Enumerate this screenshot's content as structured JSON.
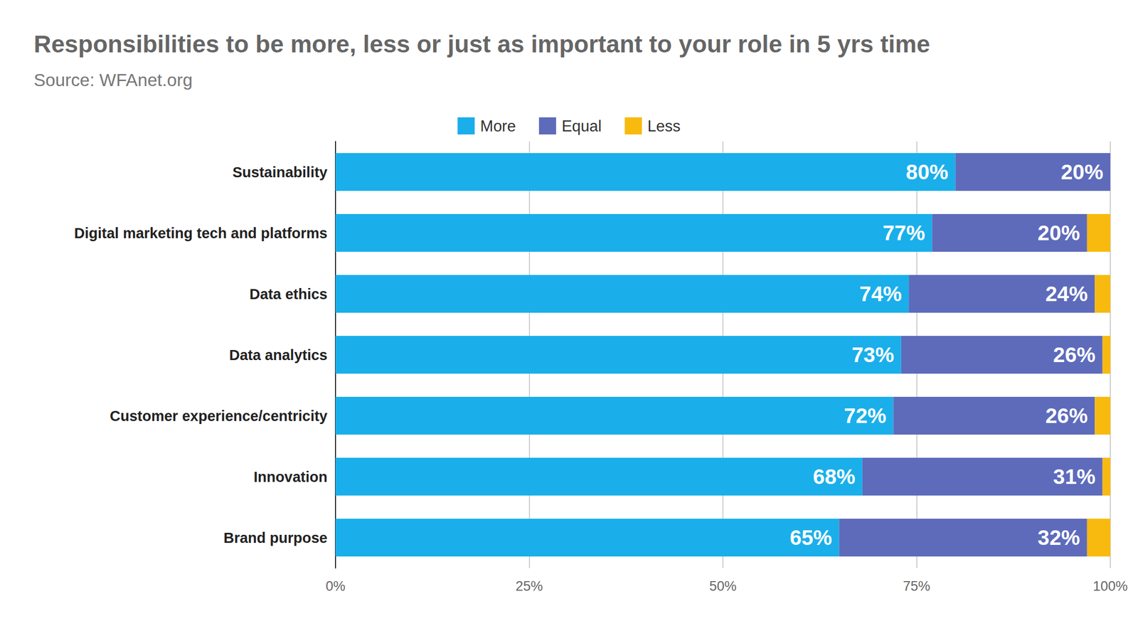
{
  "chart_data": {
    "type": "bar",
    "title": "Responsibilities to be more, less or just as important to your role in 5 yrs time",
    "subtitle": "Source: WFAnet.org",
    "orientation": "horizontal",
    "stacked": true,
    "grid": true,
    "legend": "top",
    "categories": [
      "Sustainability",
      "Digital marketing tech and platforms",
      "Data ethics",
      "Data analytics",
      "Customer experience/centricity",
      "Innovation",
      "Brand purpose"
    ],
    "series": [
      {
        "name": "More",
        "color": "#1aafea",
        "data_labels": true,
        "values": [
          80,
          77,
          74,
          73,
          72,
          68,
          65
        ],
        "value_labels": [
          "80%",
          "77%",
          "74%",
          "73%",
          "72%",
          "68%",
          "65%"
        ]
      },
      {
        "name": "Equal",
        "color": "#5e6bbb",
        "data_labels": true,
        "values": [
          20,
          20,
          24,
          26,
          26,
          31,
          32
        ],
        "value_labels": [
          "20%",
          "20%",
          "24%",
          "26%",
          "26%",
          "31%",
          "32%"
        ]
      },
      {
        "name": "Less",
        "color": "#f8ba0e",
        "data_labels": false,
        "values": [
          0,
          3,
          2,
          1,
          2,
          1,
          3
        ]
      }
    ],
    "xlim": [
      0,
      100
    ],
    "xticks": [
      {
        "value": 0,
        "label": "0%"
      },
      {
        "value": 25,
        "label": "25%"
      },
      {
        "value": 50,
        "label": "50%"
      },
      {
        "value": 75,
        "label": "75%"
      },
      {
        "value": 100,
        "label": "100%"
      }
    ]
  }
}
